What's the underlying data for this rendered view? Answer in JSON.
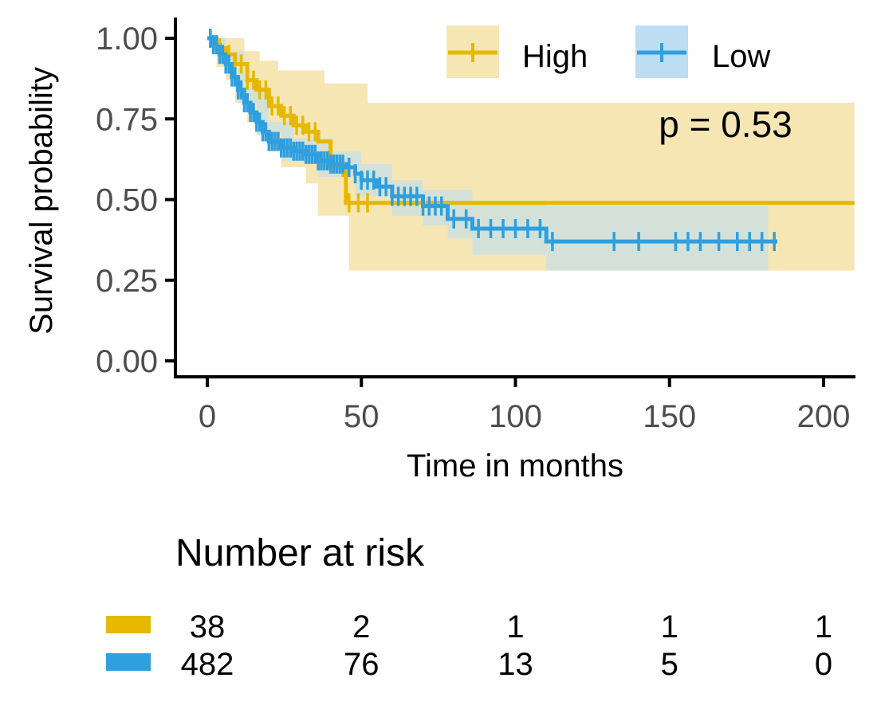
{
  "chart_data": {
    "type": "line",
    "subtype": "kaplan-meier",
    "xlabel": "Time in months",
    "ylabel": "Survival probability",
    "xlim": [
      -10,
      210
    ],
    "ylim": [
      -0.04,
      1.04
    ],
    "x_ticks": [
      0,
      50,
      100,
      150,
      200
    ],
    "x_tick_labels": [
      "0",
      "50",
      "100",
      "150",
      "200"
    ],
    "y_ticks": [
      0,
      0.25,
      0.5,
      0.75,
      1.0
    ],
    "y_tick_labels": [
      "0.00",
      "0.25",
      "0.50",
      "0.75",
      "1.00"
    ],
    "grid": false,
    "legend": {
      "position": "top-right",
      "entries": [
        {
          "label": "High",
          "color": "#E7B800"
        },
        {
          "label": "Low",
          "color": "#2E9FDF"
        }
      ]
    },
    "annotation": {
      "text": "p = 0.53",
      "x": 150,
      "y": 0.74
    },
    "series": [
      {
        "name": "High",
        "color": "#E7B800",
        "band_color": "#F6E6B4",
        "steps": [
          [
            0,
            1.0
          ],
          [
            3,
            0.97
          ],
          [
            6,
            0.95
          ],
          [
            9,
            0.92
          ],
          [
            13,
            0.87
          ],
          [
            16,
            0.84
          ],
          [
            20,
            0.79
          ],
          [
            24,
            0.76
          ],
          [
            28,
            0.73
          ],
          [
            32,
            0.71
          ],
          [
            36,
            0.68
          ],
          [
            40,
            0.6
          ],
          [
            45,
            0.49
          ],
          [
            110,
            0.49
          ],
          [
            210,
            0.49
          ]
        ],
        "lower_steps": [
          [
            0,
            1.0
          ],
          [
            3,
            0.91
          ],
          [
            6,
            0.87
          ],
          [
            9,
            0.8
          ],
          [
            13,
            0.74
          ],
          [
            16,
            0.7
          ],
          [
            20,
            0.65
          ],
          [
            24,
            0.6
          ],
          [
            32,
            0.55
          ],
          [
            36,
            0.45
          ],
          [
            46,
            0.28
          ],
          [
            210,
            0.28
          ]
        ],
        "upper_steps": [
          [
            0,
            1.0
          ],
          [
            8,
            1.0
          ],
          [
            12,
            0.96
          ],
          [
            17,
            0.93
          ],
          [
            23,
            0.9
          ],
          [
            38,
            0.86
          ],
          [
            52,
            0.8
          ],
          [
            70,
            0.8
          ],
          [
            210,
            0.84
          ]
        ],
        "censor_x": [
          4,
          7,
          9,
          11,
          13,
          15,
          17,
          19,
          21,
          23,
          25,
          27,
          29,
          31,
          33,
          35,
          44,
          46,
          49,
          52
        ]
      },
      {
        "name": "Low",
        "color": "#2E9FDF",
        "band_color": "#BCDDF2",
        "steps": [
          [
            0,
            1.0
          ],
          [
            2,
            0.98
          ],
          [
            4,
            0.95
          ],
          [
            6,
            0.92
          ],
          [
            8,
            0.88
          ],
          [
            10,
            0.84
          ],
          [
            12,
            0.8
          ],
          [
            14,
            0.77
          ],
          [
            16,
            0.74
          ],
          [
            18,
            0.71
          ],
          [
            20,
            0.68
          ],
          [
            24,
            0.66
          ],
          [
            28,
            0.65
          ],
          [
            32,
            0.64
          ],
          [
            36,
            0.62
          ],
          [
            40,
            0.61
          ],
          [
            45,
            0.6
          ],
          [
            48,
            0.58
          ],
          [
            50,
            0.56
          ],
          [
            55,
            0.54
          ],
          [
            60,
            0.51
          ],
          [
            70,
            0.48
          ],
          [
            78,
            0.44
          ],
          [
            86,
            0.41
          ],
          [
            108,
            0.41
          ],
          [
            110,
            0.37
          ],
          [
            185,
            0.37
          ]
        ],
        "lower_steps": [
          [
            0,
            1.0
          ],
          [
            4,
            0.92
          ],
          [
            10,
            0.8
          ],
          [
            16,
            0.7
          ],
          [
            24,
            0.62
          ],
          [
            36,
            0.57
          ],
          [
            48,
            0.51
          ],
          [
            60,
            0.45
          ],
          [
            70,
            0.42
          ],
          [
            78,
            0.38
          ],
          [
            86,
            0.33
          ],
          [
            110,
            0.28
          ],
          [
            182,
            0.28
          ]
        ],
        "upper_steps": [
          [
            0,
            1.0
          ],
          [
            6,
            0.96
          ],
          [
            12,
            0.85
          ],
          [
            20,
            0.74
          ],
          [
            28,
            0.69
          ],
          [
            40,
            0.65
          ],
          [
            50,
            0.61
          ],
          [
            60,
            0.56
          ],
          [
            70,
            0.53
          ],
          [
            86,
            0.49
          ],
          [
            110,
            0.48
          ],
          [
            182,
            0.48
          ]
        ],
        "censor_x": [
          1,
          2,
          3,
          4,
          5,
          6,
          7,
          8,
          9,
          10,
          11,
          12,
          13,
          14,
          15,
          16,
          17,
          18,
          19,
          20,
          21,
          22,
          23,
          24,
          25,
          26,
          27,
          28,
          29,
          30,
          31,
          32,
          33,
          34,
          35,
          36,
          37,
          38,
          39,
          40,
          41,
          42,
          43,
          44,
          46,
          48,
          50,
          52,
          54,
          56,
          58,
          60,
          62,
          64,
          66,
          68,
          70,
          72,
          74,
          76,
          80,
          84,
          88,
          92,
          96,
          100,
          104,
          108,
          112,
          132,
          140,
          152,
          156,
          160,
          166,
          172,
          176,
          180,
          184
        ]
      }
    ],
    "risk_table": {
      "title": "Number at risk",
      "times": [
        0,
        50,
        100,
        150,
        200
      ],
      "rows": [
        {
          "name": "High",
          "color": "#E7B800",
          "values": [
            "38",
            "2",
            "1",
            "1",
            "1"
          ]
        },
        {
          "name": "Low",
          "color": "#2E9FDF",
          "values": [
            "482",
            "76",
            "13",
            "5",
            "0"
          ]
        }
      ]
    }
  }
}
